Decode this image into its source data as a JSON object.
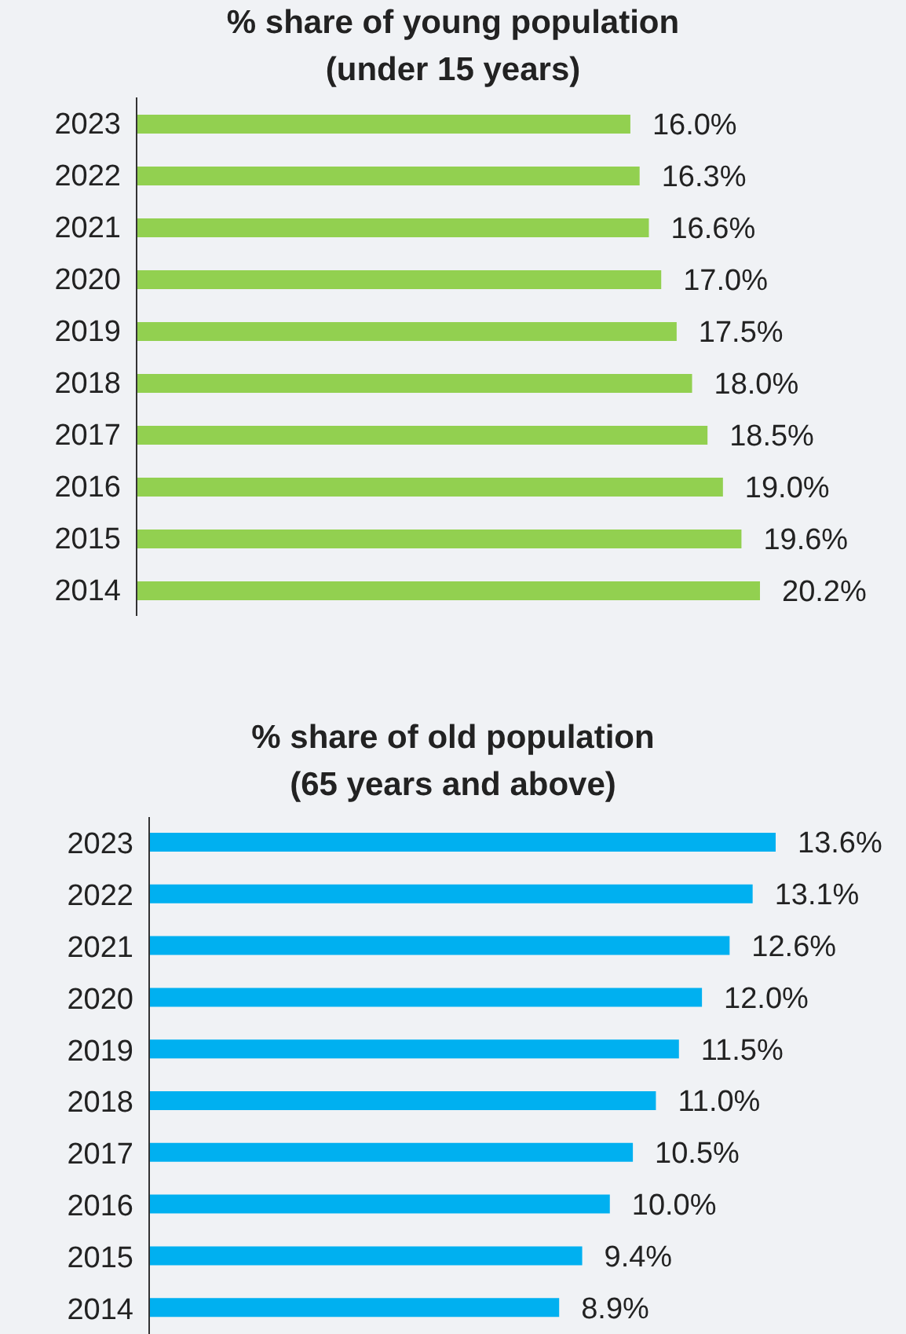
{
  "chart_data": [
    {
      "type": "bar",
      "orientation": "horizontal",
      "title": "% share of young population\n(under 15 years)",
      "categories": [
        "2023",
        "2022",
        "2021",
        "2020",
        "2019",
        "2018",
        "2017",
        "2016",
        "2015",
        "2014"
      ],
      "values": [
        16.0,
        16.3,
        16.6,
        17.0,
        17.5,
        18.0,
        18.5,
        19.0,
        19.6,
        20.2
      ],
      "value_labels": [
        "16.0%",
        "16.3%",
        "16.6%",
        "17.0%",
        "17.5%",
        "18.0%",
        "18.5%",
        "19.0%",
        "19.6%",
        "20.2%"
      ],
      "color": "#92d050",
      "grid": false,
      "legend": false
    },
    {
      "type": "bar",
      "orientation": "horizontal",
      "title": "% share of old population\n(65 years and above)",
      "categories": [
        "2023",
        "2022",
        "2021",
        "2020",
        "2019",
        "2018",
        "2017",
        "2016",
        "2015",
        "2014"
      ],
      "values": [
        13.6,
        13.1,
        12.6,
        12.0,
        11.5,
        11.0,
        10.5,
        10.0,
        9.4,
        8.9
      ],
      "value_labels": [
        "13.6%",
        "13.1%",
        "12.6%",
        "12.0%",
        "11.5%",
        "11.0%",
        "10.5%",
        "10.0%",
        "9.4%",
        "8.9%"
      ],
      "color": "#00b0f0",
      "grid": false,
      "legend": false
    }
  ]
}
